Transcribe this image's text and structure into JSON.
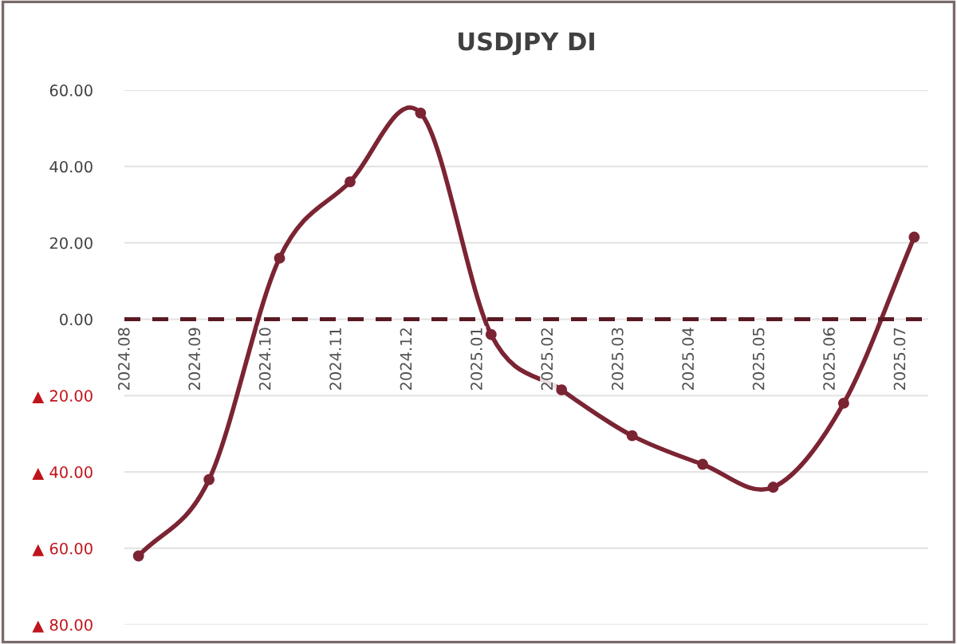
{
  "chart_data": {
    "type": "line",
    "title": "USDJPY DI",
    "categories": [
      "2024.08",
      "2024.09",
      "2024.10",
      "2024.11",
      "2024.12",
      "2025.01",
      "2025.02",
      "2025.03",
      "2025.04",
      "2025.05",
      "2025.06",
      "2025.07"
    ],
    "series": [
      {
        "color": "#7b2433",
        "values": [
          -62,
          -42,
          16,
          36,
          54,
          -4,
          -18.5,
          -30.5,
          -38,
          -44,
          -22,
          21.5
        ]
      }
    ],
    "ylim": [
      -80,
      60
    ],
    "yticks": [
      {
        "value": -80,
        "label": "▲ 80.00"
      },
      {
        "value": -60,
        "label": "▲ 60.00"
      },
      {
        "value": -40,
        "label": "▲ 40.00"
      },
      {
        "value": -20,
        "label": "▲ 20.00"
      },
      {
        "value": 0,
        "label": "0.00"
      },
      {
        "value": 20,
        "label": "20.00"
      },
      {
        "value": 40,
        "label": "40.00"
      },
      {
        "value": 60,
        "label": "60.00"
      }
    ],
    "ref_lines": [
      {
        "axis": "y",
        "value": 0,
        "color": "#5a1a24",
        "line_style": "dashed"
      }
    ],
    "grid": "y",
    "marker": "circle",
    "line_style": "solid"
  }
}
